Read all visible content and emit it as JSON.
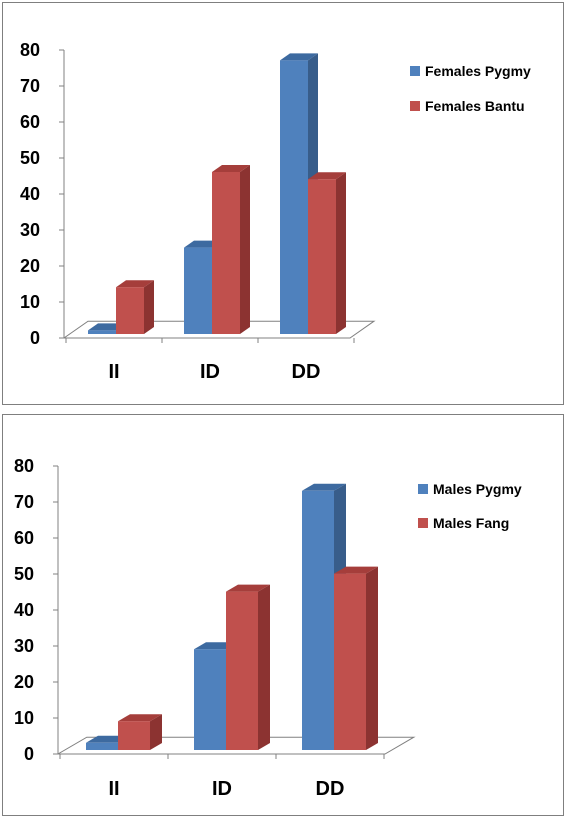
{
  "chart_data": [
    {
      "type": "bar",
      "categories": [
        "II",
        "ID",
        "DD"
      ],
      "series": [
        {
          "name": "Females Pygmy",
          "values": [
            1,
            24,
            76
          ]
        },
        {
          "name": "Females Bantu",
          "values": [
            13,
            45,
            43
          ]
        }
      ],
      "ylim": [
        0,
        80
      ],
      "yticks": [
        0,
        10,
        20,
        30,
        40,
        50,
        60,
        70,
        80
      ],
      "legend": "right",
      "grid": false,
      "style": "3d-clustered-column"
    },
    {
      "type": "bar",
      "categories": [
        "II",
        "ID",
        "DD"
      ],
      "series": [
        {
          "name": "Males Pygmy",
          "values": [
            2,
            28,
            72
          ]
        },
        {
          "name": "Males Fang",
          "values": [
            8,
            44,
            49
          ]
        }
      ],
      "ylim": [
        0,
        80
      ],
      "yticks": [
        0,
        10,
        20,
        30,
        40,
        50,
        60,
        70,
        80
      ],
      "legend": "right",
      "grid": false,
      "style": "3d-clustered-column"
    }
  ],
  "colors": {
    "series1_front": "#4f81bd",
    "series1_side": "#385d8a",
    "series1_top": "#3d6aa0",
    "series2_front": "#c0504d",
    "series2_side": "#8c3331",
    "series2_top": "#a53e3b",
    "axis": "#808080"
  }
}
